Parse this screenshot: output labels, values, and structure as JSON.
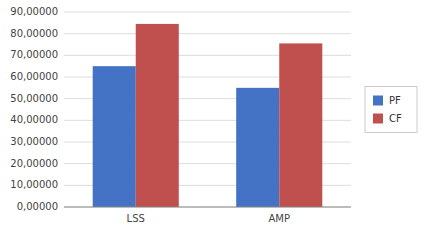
{
  "chart_data": {
    "type": "bar",
    "categories": [
      "LSS",
      "AMP"
    ],
    "series": [
      {
        "name": "PF",
        "color": "#4472C4",
        "values": [
          65.0,
          55.0
        ]
      },
      {
        "name": "CF",
        "color": "#C0504D",
        "values": [
          84.5,
          75.5
        ]
      }
    ],
    "ylim": [
      0,
      90
    ],
    "yticks": [
      {
        "value": 0,
        "label": "0,00000"
      },
      {
        "value": 10,
        "label": "10,00000"
      },
      {
        "value": 20,
        "label": "20,00000"
      },
      {
        "value": 30,
        "label": "30,00000"
      },
      {
        "value": 40,
        "label": "40,00000"
      },
      {
        "value": 50,
        "label": "50,00000"
      },
      {
        "value": 60,
        "label": "60,00000"
      },
      {
        "value": 70,
        "label": "70,00000"
      },
      {
        "value": 80,
        "label": "80,00000"
      },
      {
        "value": 90,
        "label": "90,00000"
      }
    ],
    "grid": true,
    "legend": "right"
  }
}
